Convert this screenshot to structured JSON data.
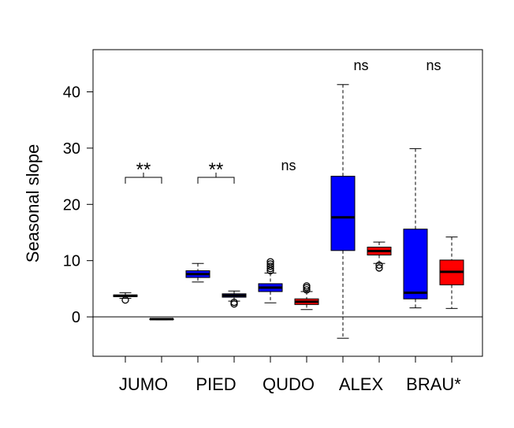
{
  "chart_data": {
    "type": "boxplot",
    "ylabel": "Seasonal slope",
    "xlabel": "",
    "ylim": [
      -7,
      47.5
    ],
    "yticks": [
      0,
      10,
      20,
      30,
      40
    ],
    "reference_line": 0,
    "colors": {
      "blue": "#0000ff",
      "red": "#ff0000",
      "axis": "#000000"
    },
    "groups": [
      {
        "label": "JUMO",
        "annotation": "**",
        "boxes": [
          {
            "color": "blue",
            "min": 3.3,
            "q1": 3.6,
            "median": 3.75,
            "q3": 3.9,
            "max": 4.3,
            "outliers": [
              3.0
            ]
          },
          {
            "color": "blue",
            "min": -0.5,
            "q1": -0.45,
            "median": -0.4,
            "q3": -0.35,
            "max": -0.3,
            "outliers": []
          }
        ]
      },
      {
        "label": "PIED",
        "annotation": "**",
        "boxes": [
          {
            "color": "blue",
            "min": 6.2,
            "q1": 7.0,
            "median": 7.6,
            "q3": 8.2,
            "max": 9.5,
            "outliers": []
          },
          {
            "color": "blue",
            "min": 2.8,
            "q1": 3.5,
            "median": 3.8,
            "q3": 4.1,
            "max": 4.6,
            "outliers": [
              2.3,
              2.6
            ]
          }
        ]
      },
      {
        "label": "QUDO",
        "annotation": "ns",
        "boxes": [
          {
            "color": "blue",
            "min": 2.5,
            "q1": 4.5,
            "median": 5.2,
            "q3": 5.9,
            "max": 7.8,
            "outliers": [
              8.2,
              8.6,
              9.0,
              9.4,
              9.8
            ]
          },
          {
            "color": "red",
            "min": 1.3,
            "q1": 2.2,
            "median": 2.7,
            "q3": 3.2,
            "max": 4.5,
            "outliers": [
              4.8,
              5.2,
              5.5
            ]
          }
        ]
      },
      {
        "label": "ALEX",
        "annotation": "ns",
        "boxes": [
          {
            "color": "blue",
            "min": -3.8,
            "q1": 11.8,
            "median": 17.7,
            "q3": 25.0,
            "max": 41.3,
            "outliers": []
          },
          {
            "color": "red",
            "min": 9.5,
            "q1": 11.0,
            "median": 11.7,
            "q3": 12.4,
            "max": 13.3,
            "outliers": [
              8.7,
              9.2
            ]
          }
        ]
      },
      {
        "label": "BRAU*",
        "annotation": "ns",
        "boxes": [
          {
            "color": "blue",
            "min": 1.6,
            "q1": 3.2,
            "median": 4.3,
            "q3": 15.6,
            "max": 29.9,
            "outliers": []
          },
          {
            "color": "red",
            "min": 1.5,
            "q1": 5.7,
            "median": 8.0,
            "q3": 10.1,
            "max": 14.2,
            "outliers": []
          }
        ]
      }
    ]
  }
}
